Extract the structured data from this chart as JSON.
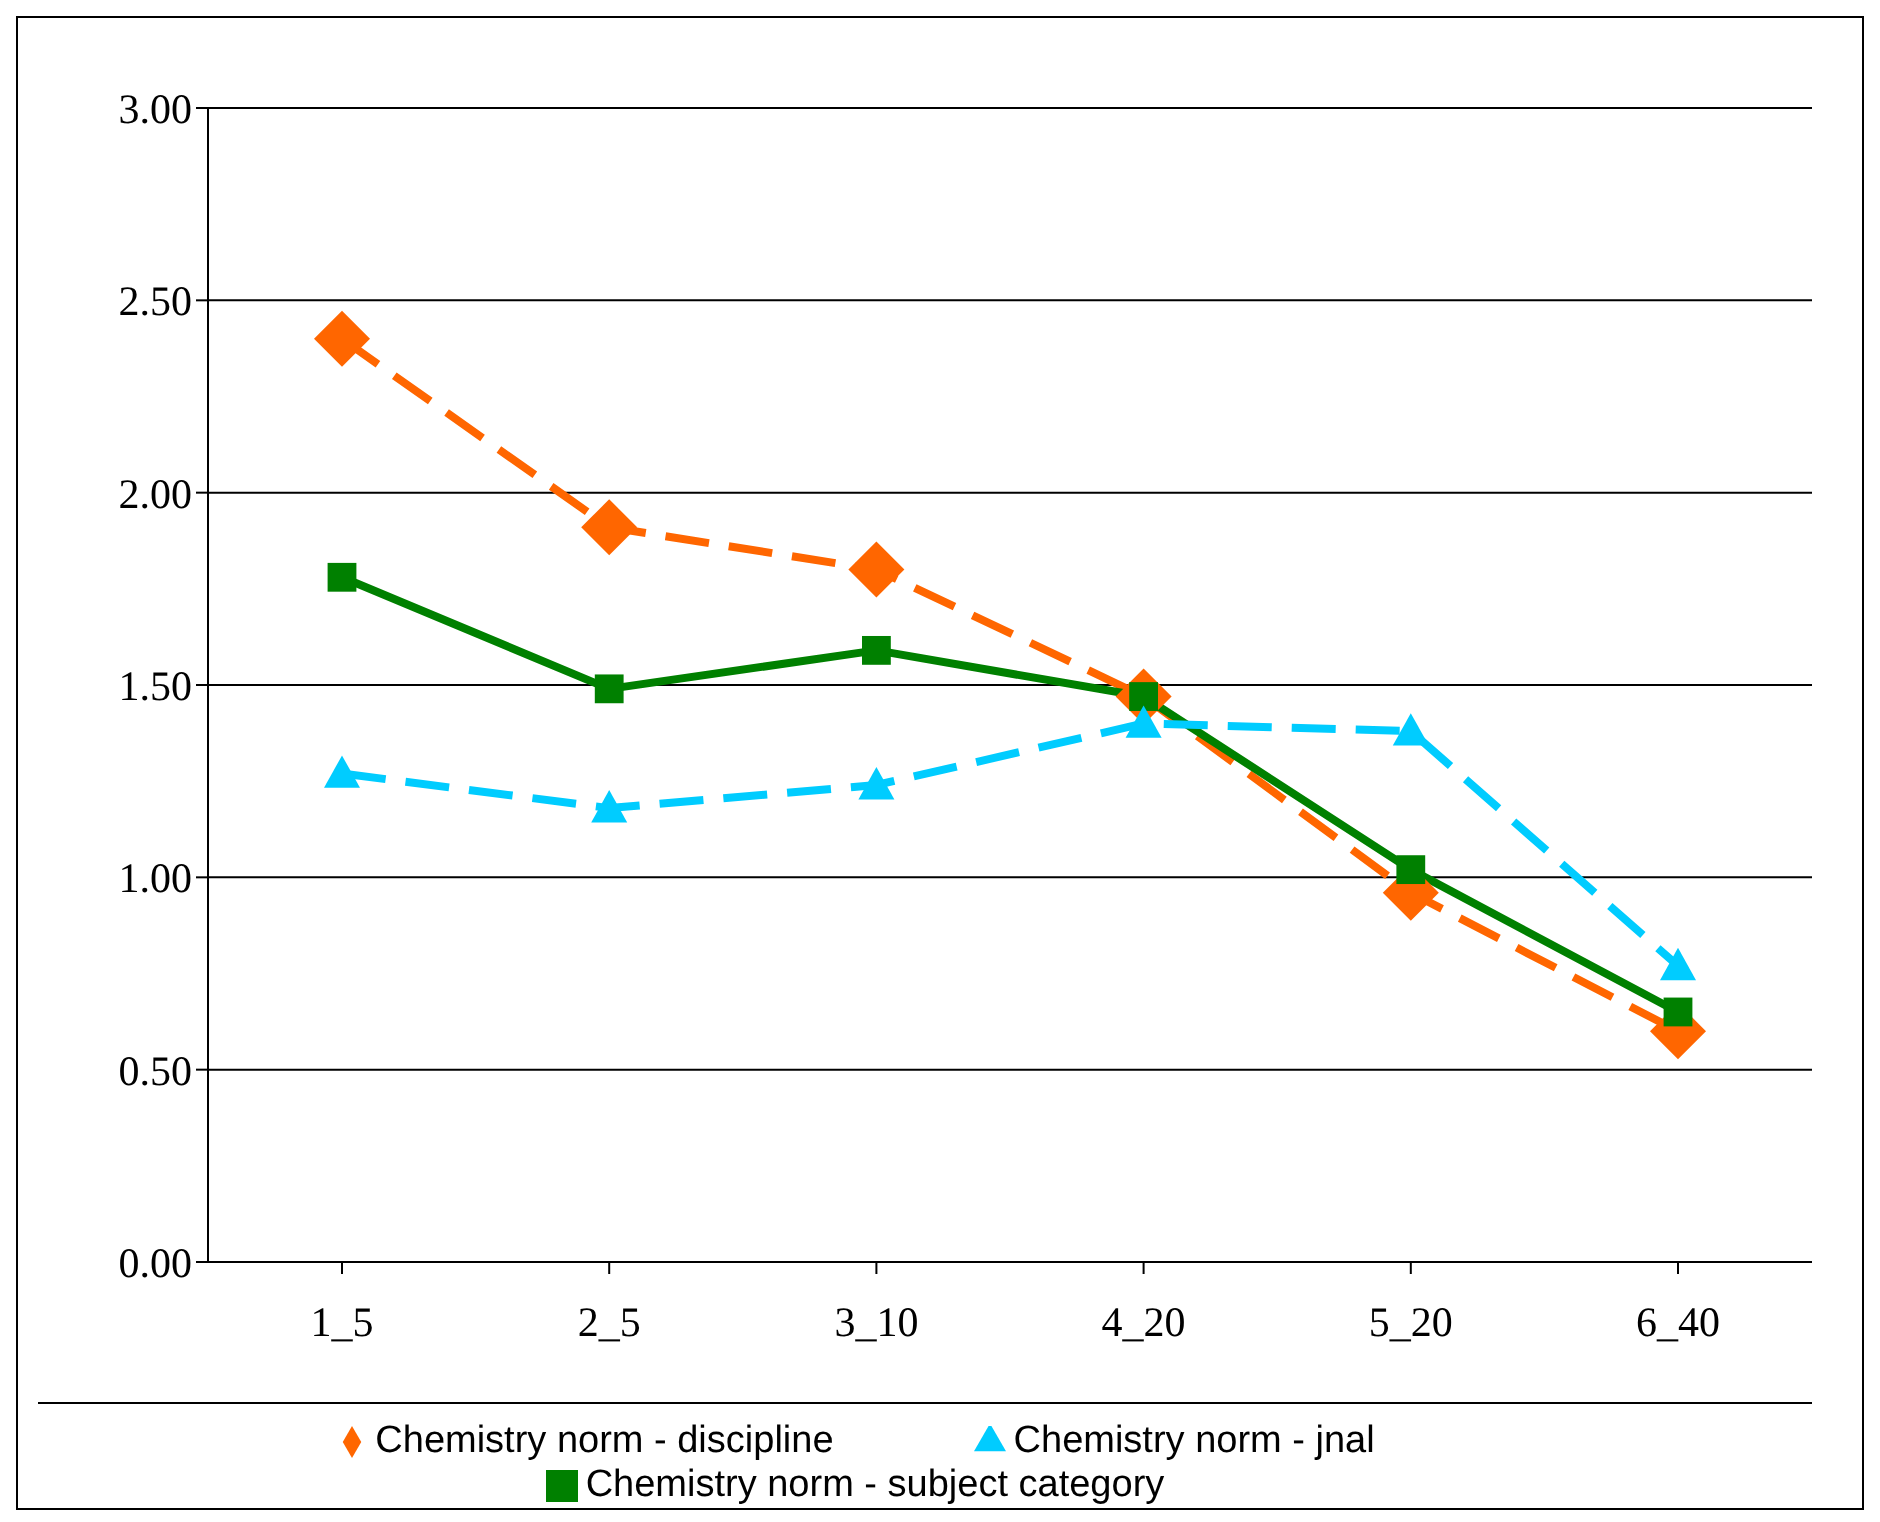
{
  "chart_data": {
    "type": "line",
    "categories": [
      "1_5",
      "2_5",
      "3_10",
      "4_20",
      "5_20",
      "6_40"
    ],
    "series": [
      {
        "name": "Chemistry norm - discipline",
        "color": "#ff6600",
        "values": [
          2.4,
          1.91,
          1.8,
          1.47,
          0.96,
          0.6
        ],
        "marker": "diamond",
        "line_style": "dashed"
      },
      {
        "name": "Chemistry norm - subject category",
        "color": "#008000",
        "values": [
          1.78,
          1.49,
          1.59,
          1.47,
          1.02,
          0.65
        ],
        "marker": "square",
        "line_style": "solid"
      },
      {
        "name": "Chemistry norm - jnal",
        "color": "#00ccff",
        "values": [
          1.27,
          1.18,
          1.24,
          1.4,
          1.38,
          0.77
        ],
        "marker": "triangle",
        "line_style": "dashed"
      }
    ],
    "ylim": [
      0,
      3
    ],
    "yticks": [
      {
        "value": 0,
        "label": "0.00"
      },
      {
        "value": 0.5,
        "label": "0.50"
      },
      {
        "value": 1,
        "label": "1.00"
      },
      {
        "value": 1.5,
        "label": "1.50"
      },
      {
        "value": 2,
        "label": "2.00"
      },
      {
        "value": 2.5,
        "label": "2.50"
      },
      {
        "value": 3,
        "label": "3.00"
      }
    ],
    "grid": "y",
    "legend": "bottom"
  }
}
